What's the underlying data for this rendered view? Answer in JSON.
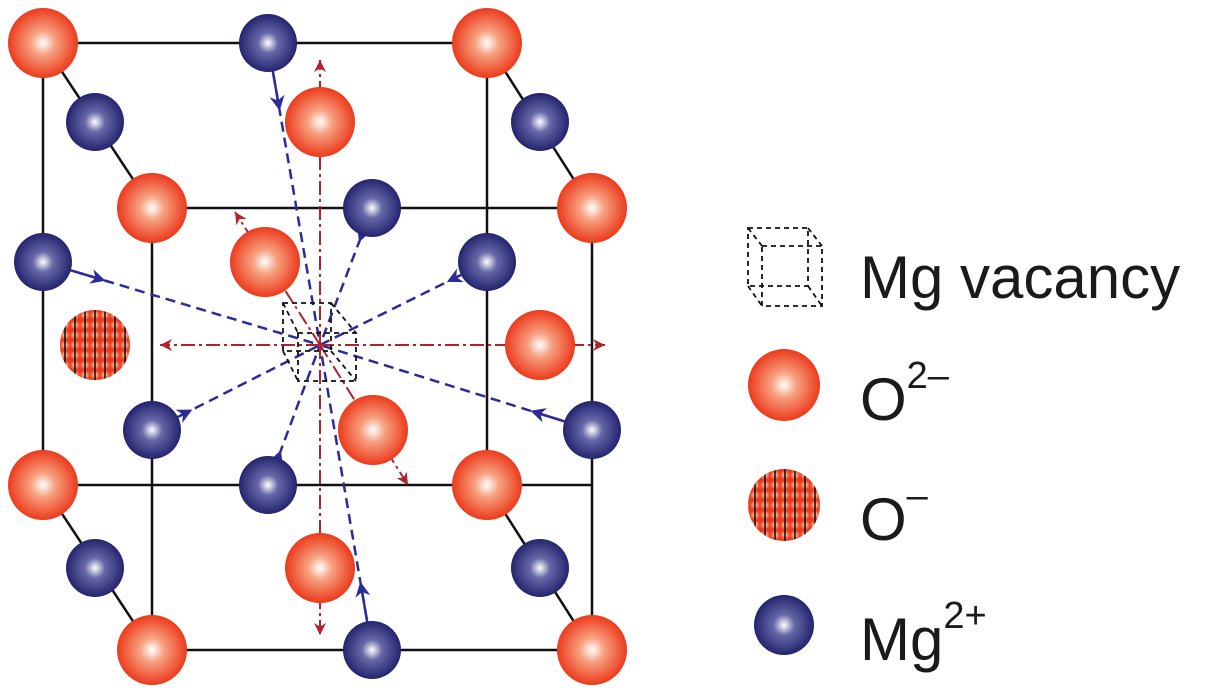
{
  "legend": {
    "items": [
      {
        "label": "Mg vacancy"
      },
      {
        "label": "O",
        "superscript": "2–"
      },
      {
        "label": "O",
        "superscript": "–"
      },
      {
        "label": "Mg",
        "superscript": "2+"
      }
    ]
  }
}
